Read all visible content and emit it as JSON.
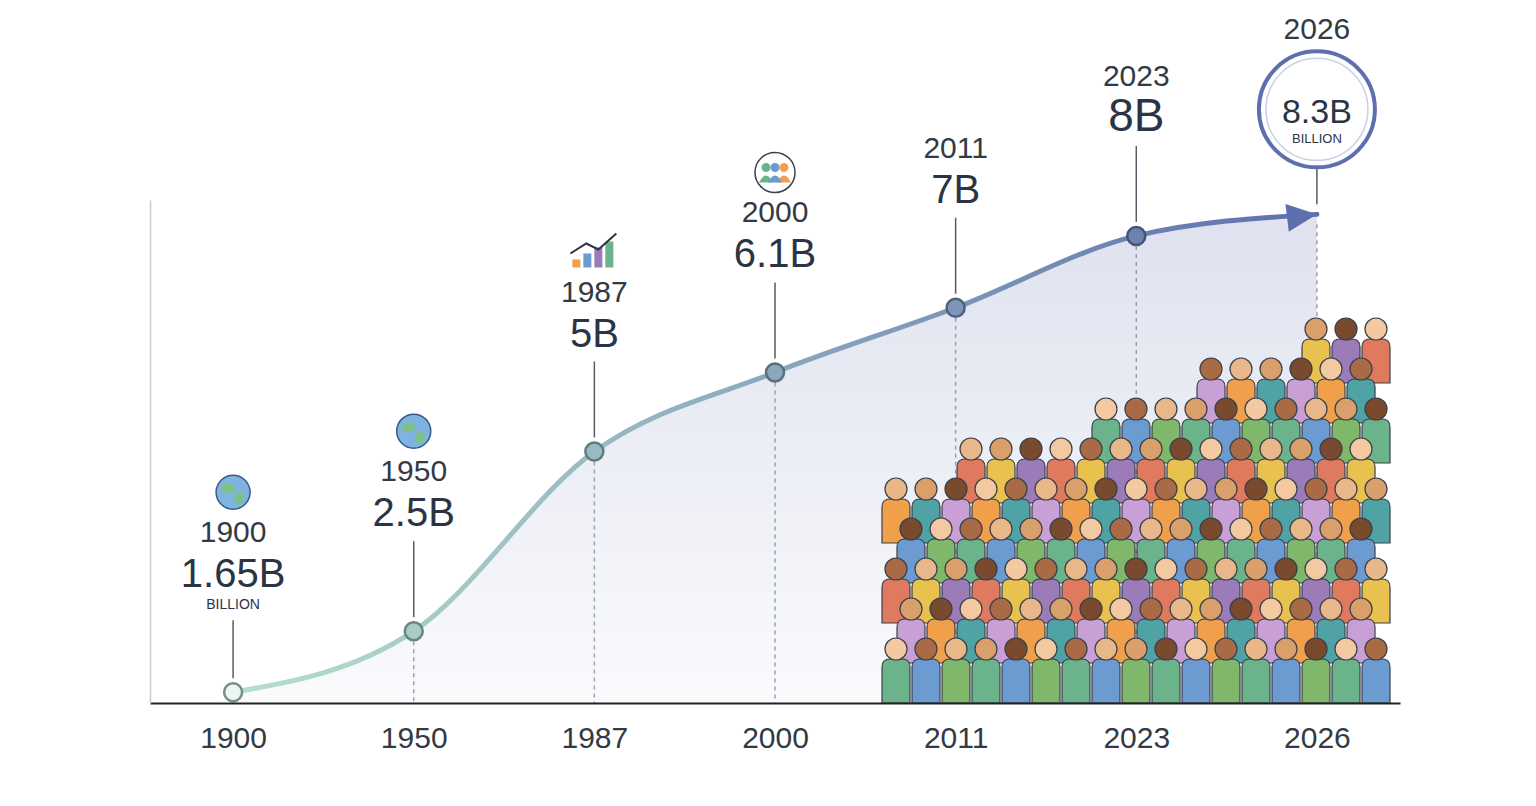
{
  "chart_data": {
    "type": "line",
    "categories": [
      "1900",
      "1950",
      "1987",
      "2000",
      "2011",
      "2023",
      "2026"
    ],
    "values": [
      1.65,
      2.5,
      5,
      6.1,
      7,
      8,
      8.3
    ],
    "value_labels": [
      "1.65B",
      "2.5B",
      "5B",
      "6.1B",
      "7B",
      "8B",
      "8.3B"
    ],
    "annotations": [
      {
        "text": "BILLION",
        "category": "1900"
      },
      {
        "text": "BILLION",
        "category": "2026"
      }
    ],
    "color": "#5f6fae",
    "ylim": [
      1.5,
      8.5
    ],
    "yticks": [],
    "tick_labels": "x",
    "data_labels": true,
    "grid": true,
    "marker": "circle"
  }
}
